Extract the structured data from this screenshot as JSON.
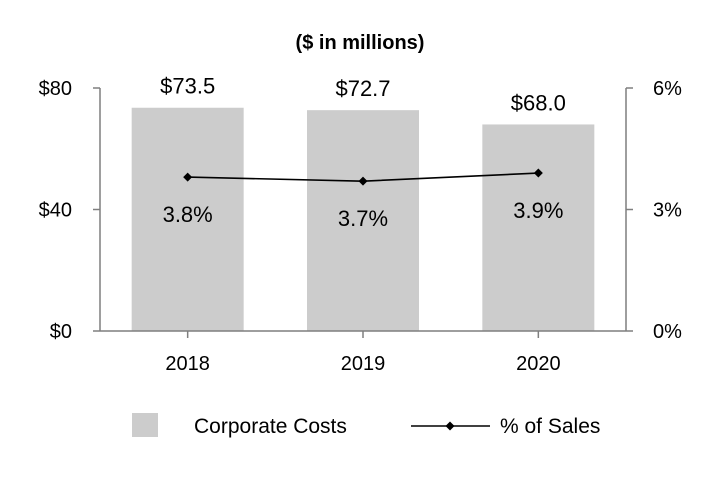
{
  "chart_data": {
    "type": "bar",
    "title": "($ in millions)",
    "categories": [
      "2018",
      "2019",
      "2020"
    ],
    "series": [
      {
        "name": "Corporate Costs",
        "kind": "bar",
        "axis": "left",
        "values": [
          73.5,
          72.7,
          68.0
        ],
        "labels": [
          "$73.5",
          "$72.7",
          "$68.0"
        ],
        "color": "#cccccc"
      },
      {
        "name": "% of Sales",
        "kind": "line",
        "axis": "right",
        "values": [
          3.8,
          3.7,
          3.9
        ],
        "labels": [
          "3.8%",
          "3.7%",
          "3.9%"
        ],
        "color": "#000000"
      }
    ],
    "left_axis": {
      "ylim": [
        0,
        80
      ],
      "ticks": [
        0,
        40,
        80
      ],
      "tick_labels": [
        "$0",
        "$40",
        "$80"
      ]
    },
    "right_axis": {
      "ylim": [
        0,
        6
      ],
      "ticks": [
        0,
        3,
        6
      ],
      "tick_labels": [
        "0%",
        "3%",
        "6%"
      ]
    },
    "grid": false,
    "legend_position": "bottom"
  }
}
